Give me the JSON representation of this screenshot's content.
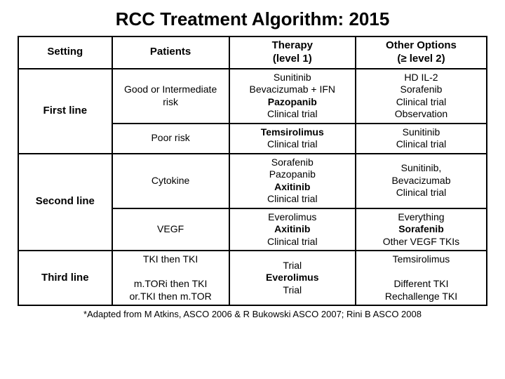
{
  "title": "RCC Treatment Algorithm: 2015",
  "footnote": "*Adapted from M Atkins, ASCO 2006 & R Bukowski ASCO 2007; Rini B ASCO 2008",
  "table": {
    "header": {
      "c1": "Setting",
      "c2": "Patients",
      "c3_a": "Therapy",
      "c3_b": "(level 1)",
      "c4_a": "Other Options",
      "c4_b": "(≥ level 2)"
    },
    "r1": {
      "label": "First line",
      "patients": "Good or Intermediate risk",
      "therapy_l1": "Sunitinib",
      "therapy_l2": "Bevacizumab + IFN",
      "therapy_l3": "Pazopanib",
      "therapy_l4": "Clinical trial",
      "other_l1": "HD IL-2",
      "other_l2": "Sorafenib",
      "other_l3": "Clinical trial",
      "other_l4": "Observation"
    },
    "r2": {
      "patients": "Poor risk",
      "therapy_l1": "Temsirolimus",
      "therapy_l2": "Clinical trial",
      "other_l1": "Sunitinib",
      "other_l2": "Clinical trial"
    },
    "r3": {
      "label": "Second line",
      "patients": "Cytokine",
      "therapy_l1": "Sorafenib",
      "therapy_l2": "Pazopanib",
      "therapy_l3": "Axitinib",
      "therapy_l4": "Clinical trial",
      "other_l1": "Sunitinib,",
      "other_l2": "Bevacizumab",
      "other_l3": "Clinical trial"
    },
    "r4": {
      "patients": "VEGF",
      "therapy_l1": "Everolimus",
      "therapy_l2": "Axitinib",
      "therapy_l3": "Clinical trial",
      "other_l1": "Everything",
      "other_l2": "Sorafenib",
      "other_l3": "Other VEGF TKIs"
    },
    "r5": {
      "label": "Third line",
      "patients_l1": "TKI then TKI",
      "patients_l2": "m.TORi then TKI",
      "patients_l3": "or.TKI then m.TOR",
      "therapy_l1": "Trial",
      "therapy_l2": "Everolimus",
      "therapy_l3": "Trial",
      "other_l1": "Temsirolimus",
      "other_l2": "Different TKI",
      "other_l3": "Rechallenge TKI"
    }
  }
}
